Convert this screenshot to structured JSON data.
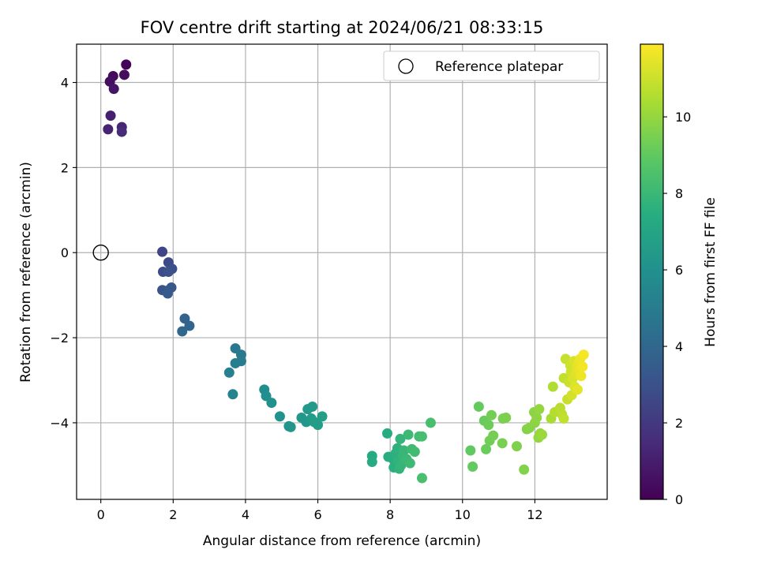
{
  "chart_data": {
    "type": "scatter",
    "title": "FOV centre drift starting at 2024/06/21 08:33:15",
    "xlabel": "Angular distance from reference (arcmin)",
    "ylabel": "Rotation from reference (arcmin)",
    "xlim": [
      -0.67,
      14.0
    ],
    "ylim": [
      -5.8,
      4.9
    ],
    "xticks": [
      0,
      2,
      4,
      6,
      8,
      10,
      12
    ],
    "yticks": [
      -4,
      -2,
      0,
      2,
      4
    ],
    "grid": true,
    "legend": {
      "placement": "top-right",
      "entries": [
        "Reference platepar"
      ]
    },
    "reference_point": {
      "x": 0,
      "y": 0,
      "label": "Reference platepar"
    },
    "colorbar": {
      "label": "Hours from first FF file",
      "colormap": "viridis",
      "range": [
        0,
        11.9
      ],
      "ticks": [
        0,
        2,
        4,
        6,
        8,
        10
      ]
    },
    "points": [
      {
        "x": 0.7,
        "y": 4.42,
        "c": 0.1
      },
      {
        "x": 0.34,
        "y": 4.15,
        "c": 0.3
      },
      {
        "x": 0.65,
        "y": 4.18,
        "c": 0.4
      },
      {
        "x": 0.25,
        "y": 4.02,
        "c": 0.5
      },
      {
        "x": 0.36,
        "y": 3.85,
        "c": 0.7
      },
      {
        "x": 0.27,
        "y": 3.22,
        "c": 1.0
      },
      {
        "x": 0.2,
        "y": 2.9,
        "c": 1.2
      },
      {
        "x": 0.58,
        "y": 2.95,
        "c": 1.3
      },
      {
        "x": 0.58,
        "y": 2.84,
        "c": 1.5
      },
      {
        "x": 1.7,
        "y": 0.02,
        "c": 2.5
      },
      {
        "x": 1.87,
        "y": -0.23,
        "c": 2.7
      },
      {
        "x": 1.72,
        "y": -0.45,
        "c": 2.8
      },
      {
        "x": 1.97,
        "y": -0.38,
        "c": 2.9
      },
      {
        "x": 1.87,
        "y": -0.45,
        "c": 3.0
      },
      {
        "x": 1.7,
        "y": -0.88,
        "c": 3.1
      },
      {
        "x": 1.8,
        "y": -0.9,
        "c": 3.2
      },
      {
        "x": 1.95,
        "y": -0.82,
        "c": 3.3
      },
      {
        "x": 1.85,
        "y": -0.96,
        "c": 3.4
      },
      {
        "x": 2.32,
        "y": -1.55,
        "c": 3.8
      },
      {
        "x": 2.45,
        "y": -1.72,
        "c": 3.9
      },
      {
        "x": 2.25,
        "y": -1.85,
        "c": 4.0
      },
      {
        "x": 3.72,
        "y": -2.25,
        "c": 4.8
      },
      {
        "x": 3.88,
        "y": -2.4,
        "c": 4.9
      },
      {
        "x": 3.88,
        "y": -2.55,
        "c": 5.0
      },
      {
        "x": 3.72,
        "y": -2.6,
        "c": 5.1
      },
      {
        "x": 3.55,
        "y": -2.82,
        "c": 5.2
      },
      {
        "x": 3.65,
        "y": -3.33,
        "c": 5.3
      },
      {
        "x": 4.52,
        "y": -3.22,
        "c": 5.8
      },
      {
        "x": 4.57,
        "y": -3.37,
        "c": 5.9
      },
      {
        "x": 4.72,
        "y": -3.53,
        "c": 6.0
      },
      {
        "x": 4.95,
        "y": -3.85,
        "c": 6.1
      },
      {
        "x": 5.2,
        "y": -4.08,
        "c": 6.2
      },
      {
        "x": 5.25,
        "y": -4.1,
        "c": 6.25
      },
      {
        "x": 5.55,
        "y": -3.88,
        "c": 6.3
      },
      {
        "x": 5.68,
        "y": -3.98,
        "c": 6.35
      },
      {
        "x": 5.72,
        "y": -3.68,
        "c": 6.4
      },
      {
        "x": 5.85,
        "y": -3.62,
        "c": 6.45
      },
      {
        "x": 5.82,
        "y": -3.9,
        "c": 6.5
      },
      {
        "x": 5.9,
        "y": -3.98,
        "c": 6.55
      },
      {
        "x": 6.0,
        "y": -4.05,
        "c": 6.6
      },
      {
        "x": 6.12,
        "y": -3.85,
        "c": 6.65
      },
      {
        "x": 7.5,
        "y": -4.78,
        "c": 7.3
      },
      {
        "x": 7.5,
        "y": -4.92,
        "c": 7.35
      },
      {
        "x": 7.92,
        "y": -4.25,
        "c": 7.4
      },
      {
        "x": 7.95,
        "y": -4.8,
        "c": 7.45
      },
      {
        "x": 8.08,
        "y": -4.85,
        "c": 7.5
      },
      {
        "x": 8.1,
        "y": -5.05,
        "c": 7.55
      },
      {
        "x": 8.15,
        "y": -4.72,
        "c": 7.6
      },
      {
        "x": 8.2,
        "y": -4.6,
        "c": 7.65
      },
      {
        "x": 8.22,
        "y": -4.9,
        "c": 7.7
      },
      {
        "x": 8.25,
        "y": -5.08,
        "c": 7.75
      },
      {
        "x": 8.28,
        "y": -4.38,
        "c": 7.8
      },
      {
        "x": 8.3,
        "y": -5.0,
        "c": 7.85
      },
      {
        "x": 8.35,
        "y": -4.78,
        "c": 7.9
      },
      {
        "x": 8.38,
        "y": -4.65,
        "c": 7.95
      },
      {
        "x": 8.45,
        "y": -4.85,
        "c": 8.0
      },
      {
        "x": 8.5,
        "y": -4.28,
        "c": 8.05
      },
      {
        "x": 8.55,
        "y": -4.95,
        "c": 8.1
      },
      {
        "x": 8.6,
        "y": -4.62,
        "c": 8.15
      },
      {
        "x": 8.68,
        "y": -4.68,
        "c": 8.2
      },
      {
        "x": 8.8,
        "y": -4.32,
        "c": 8.25
      },
      {
        "x": 8.88,
        "y": -4.32,
        "c": 8.3
      },
      {
        "x": 8.88,
        "y": -5.3,
        "c": 8.35
      },
      {
        "x": 9.12,
        "y": -4.0,
        "c": 8.4
      },
      {
        "x": 10.22,
        "y": -4.65,
        "c": 9.0
      },
      {
        "x": 10.28,
        "y": -5.03,
        "c": 9.05
      },
      {
        "x": 10.45,
        "y": -3.62,
        "c": 9.1
      },
      {
        "x": 10.6,
        "y": -3.95,
        "c": 9.15
      },
      {
        "x": 10.65,
        "y": -4.62,
        "c": 9.2
      },
      {
        "x": 10.72,
        "y": -4.05,
        "c": 9.25
      },
      {
        "x": 10.75,
        "y": -4.42,
        "c": 9.3
      },
      {
        "x": 10.8,
        "y": -3.82,
        "c": 9.35
      },
      {
        "x": 10.85,
        "y": -4.3,
        "c": 9.4
      },
      {
        "x": 11.1,
        "y": -4.48,
        "c": 9.45
      },
      {
        "x": 11.12,
        "y": -3.9,
        "c": 9.5
      },
      {
        "x": 11.2,
        "y": -3.88,
        "c": 9.55
      },
      {
        "x": 11.5,
        "y": -4.55,
        "c": 9.6
      },
      {
        "x": 11.7,
        "y": -5.1,
        "c": 9.65
      },
      {
        "x": 11.78,
        "y": -4.15,
        "c": 9.7
      },
      {
        "x": 11.85,
        "y": -4.12,
        "c": 9.75
      },
      {
        "x": 11.98,
        "y": -3.75,
        "c": 9.8
      },
      {
        "x": 12.0,
        "y": -4.0,
        "c": 9.85
      },
      {
        "x": 12.05,
        "y": -3.88,
        "c": 9.9
      },
      {
        "x": 12.1,
        "y": -4.35,
        "c": 9.95
      },
      {
        "x": 12.12,
        "y": -3.68,
        "c": 10.0
      },
      {
        "x": 12.15,
        "y": -4.25,
        "c": 10.05
      },
      {
        "x": 12.2,
        "y": -4.28,
        "c": 10.1
      },
      {
        "x": 12.45,
        "y": -3.9,
        "c": 10.4
      },
      {
        "x": 12.5,
        "y": -3.15,
        "c": 10.5
      },
      {
        "x": 12.55,
        "y": -3.75,
        "c": 10.6
      },
      {
        "x": 12.7,
        "y": -3.65,
        "c": 10.7
      },
      {
        "x": 12.75,
        "y": -3.8,
        "c": 10.75
      },
      {
        "x": 12.8,
        "y": -3.9,
        "c": 10.8
      },
      {
        "x": 12.8,
        "y": -2.95,
        "c": 10.85
      },
      {
        "x": 12.85,
        "y": -2.5,
        "c": 10.9
      },
      {
        "x": 12.9,
        "y": -3.45,
        "c": 10.95
      },
      {
        "x": 12.95,
        "y": -3.05,
        "c": 11.0
      },
      {
        "x": 12.98,
        "y": -2.65,
        "c": 11.05
      },
      {
        "x": 13.0,
        "y": -2.8,
        "c": 11.1
      },
      {
        "x": 13.02,
        "y": -3.35,
        "c": 11.15
      },
      {
        "x": 13.05,
        "y": -2.95,
        "c": 11.2
      },
      {
        "x": 13.08,
        "y": -2.55,
        "c": 11.25
      },
      {
        "x": 13.1,
        "y": -3.15,
        "c": 11.3
      },
      {
        "x": 13.12,
        "y": -2.85,
        "c": 11.35
      },
      {
        "x": 13.15,
        "y": -2.7,
        "c": 11.4
      },
      {
        "x": 13.18,
        "y": -3.22,
        "c": 11.45
      },
      {
        "x": 13.2,
        "y": -2.6,
        "c": 11.5
      },
      {
        "x": 13.22,
        "y": -2.75,
        "c": 11.55
      },
      {
        "x": 13.25,
        "y": -2.5,
        "c": 11.6
      },
      {
        "x": 13.28,
        "y": -2.9,
        "c": 11.65
      },
      {
        "x": 13.32,
        "y": -2.68,
        "c": 11.7
      },
      {
        "x": 13.35,
        "y": -2.4,
        "c": 11.75
      }
    ]
  }
}
